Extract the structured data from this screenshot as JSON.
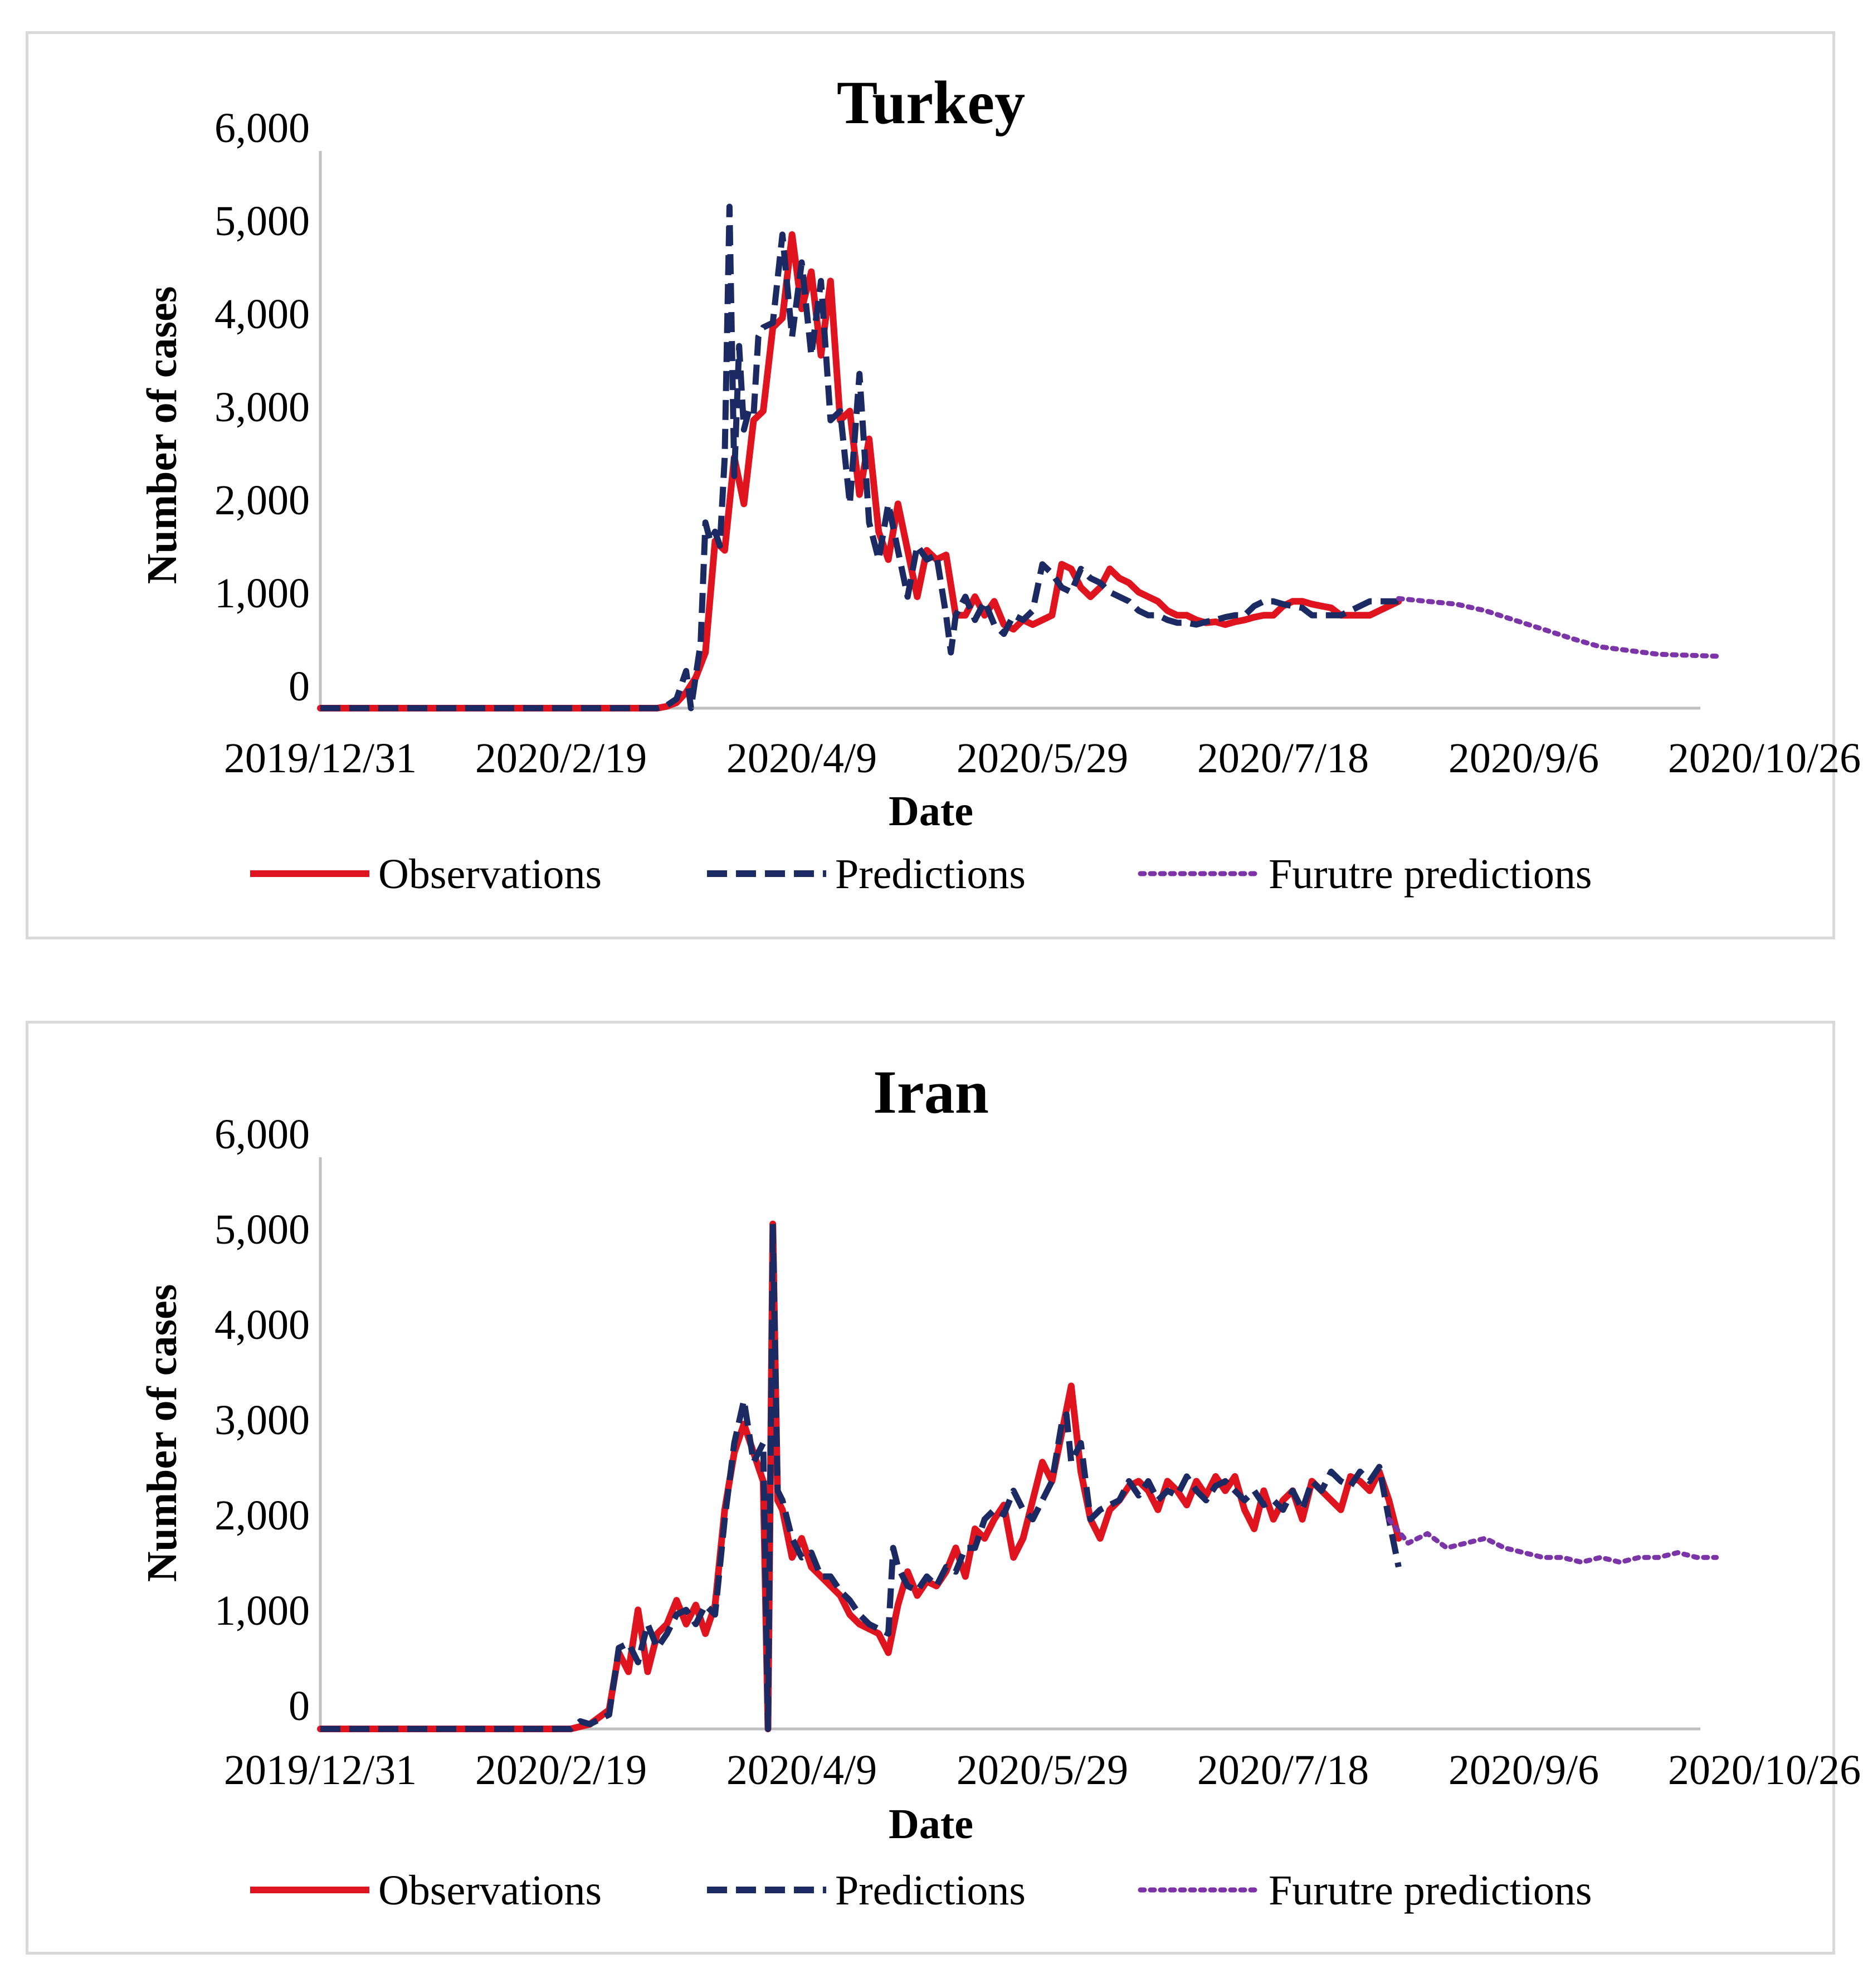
{
  "colors": {
    "observations": "#e0141e",
    "predictions": "#1b2a63",
    "future": "#7b35a8",
    "axis": "#bfbfbf"
  },
  "legend": {
    "observations": "Observations",
    "predictions": "Predictions",
    "future": "Furutre predictions"
  },
  "chart_data": [
    {
      "type": "line",
      "title": "Turkey",
      "xlabel": "Date",
      "ylabel": "Number of cases",
      "ylim": [
        0,
        6000
      ],
      "yticks": [
        "0",
        "1,000",
        "2,000",
        "3,000",
        "4,000",
        "5,000",
        "6,000"
      ],
      "x_tick_labels": [
        "2019/12/31",
        "2020/2/19",
        "2020/4/9",
        "2020/5/29",
        "2020/7/18",
        "2020/9/6",
        "2020/10/26"
      ],
      "x_unit": "days since 2019/12/31",
      "xlim": [
        0,
        300
      ],
      "series": [
        {
          "name": "Observations",
          "x": [
            0,
            70,
            72,
            74,
            76,
            78,
            80,
            82,
            84,
            86,
            88,
            90,
            92,
            94,
            96,
            98,
            100,
            102,
            104,
            106,
            108,
            110,
            112,
            114,
            116,
            118,
            120,
            122,
            124,
            126,
            128,
            130,
            132,
            134,
            136,
            138,
            140,
            142,
            144,
            146,
            148,
            150,
            152,
            154,
            156,
            158,
            160,
            162,
            164,
            166,
            168,
            170,
            172,
            174,
            176,
            178,
            180,
            182,
            184,
            186,
            188,
            190,
            192,
            194,
            196,
            198,
            200,
            202,
            204,
            206,
            208,
            210,
            212,
            214,
            216,
            218,
            220,
            222,
            224
          ],
          "y": [
            0,
            0,
            20,
            60,
            170,
            330,
            600,
            1800,
            1700,
            2700,
            2200,
            3100,
            3200,
            4100,
            4200,
            5100,
            4300,
            4700,
            3800,
            4600,
            3100,
            3200,
            2300,
            2900,
            1900,
            1600,
            2200,
            1700,
            1200,
            1700,
            1600,
            1650,
            1000,
            1000,
            1200,
            1000,
            1150,
            900,
            850,
            950,
            900,
            950,
            1000,
            1550,
            1500,
            1300,
            1200,
            1300,
            1500,
            1400,
            1350,
            1250,
            1200,
            1150,
            1050,
            1000,
            1000,
            950,
            920,
            930,
            900,
            930,
            950,
            980,
            1000,
            1000,
            1100,
            1150,
            1150,
            1120,
            1100,
            1080,
            1000,
            1000,
            1000,
            1000,
            1050,
            1100,
            1150
          ],
          "style": "solid"
        },
        {
          "name": "Predictions",
          "x": [
            0,
            70,
            72,
            74,
            76,
            77,
            78,
            79,
            80,
            81,
            82,
            83,
            84,
            85,
            86,
            87,
            88,
            89,
            90,
            91,
            92,
            94,
            96,
            98,
            100,
            102,
            104,
            106,
            108,
            110,
            112,
            114,
            116,
            118,
            120,
            122,
            124,
            126,
            128,
            130,
            131,
            132,
            134,
            136,
            138,
            140,
            142,
            144,
            146,
            148,
            150,
            152,
            154,
            156,
            158,
            160,
            162,
            164,
            166,
            168,
            170,
            172,
            174,
            176,
            178,
            180,
            182,
            184,
            186,
            188,
            190,
            192,
            194,
            196,
            198,
            200,
            202,
            204,
            206,
            208,
            210,
            212,
            214,
            216,
            218,
            220,
            222,
            224
          ],
          "y": [
            0,
            0,
            30,
            100,
            400,
            0,
            350,
            700,
            2000,
            1800,
            1900,
            1750,
            2700,
            5400,
            2500,
            3900,
            3000,
            3200,
            3150,
            4000,
            4100,
            4150,
            5100,
            4000,
            4800,
            3800,
            4600,
            3100,
            3200,
            2200,
            3600,
            2000,
            1600,
            2200,
            1700,
            1200,
            1750,
            1600,
            1650,
            1000,
            600,
            1000,
            1200,
            950,
            1150,
            900,
            800,
            1000,
            950,
            1050,
            1550,
            1450,
            1300,
            1250,
            1500,
            1400,
            1350,
            1250,
            1200,
            1150,
            1050,
            1000,
            1000,
            950,
            920,
            920,
            900,
            930,
            950,
            980,
            1000,
            1000,
            1100,
            1150,
            1150,
            1120,
            1100,
            1080,
            1000,
            1000,
            1000,
            1000,
            1050,
            1100,
            1150,
            1150,
            1150,
            1150
          ],
          "style": "dashed"
        },
        {
          "name": "Furutre predictions",
          "x": [
            224,
            230,
            236,
            242,
            248,
            254,
            260,
            266,
            272,
            278,
            284,
            290
          ],
          "y": [
            1180,
            1150,
            1120,
            1050,
            950,
            850,
            750,
            660,
            620,
            580,
            570,
            560
          ],
          "style": "dotted"
        }
      ]
    },
    {
      "type": "line",
      "title": "Iran",
      "xlabel": "Date",
      "ylabel": "Number of cases",
      "ylim": [
        0,
        6000
      ],
      "yticks": [
        "0",
        "1,000",
        "2,000",
        "3,000",
        "4,000",
        "5,000",
        "6,000"
      ],
      "x_tick_labels": [
        "2019/12/31",
        "2020/2/19",
        "2020/4/9",
        "2020/5/29",
        "2020/7/18",
        "2020/9/6",
        "2020/10/26"
      ],
      "x_unit": "days since 2019/12/31",
      "xlim": [
        0,
        300
      ],
      "series": [
        {
          "name": "Observations",
          "x": [
            0,
            52,
            56,
            60,
            62,
            64,
            66,
            68,
            70,
            72,
            74,
            76,
            78,
            80,
            82,
            84,
            86,
            88,
            90,
            92,
            93,
            94,
            95,
            96,
            98,
            100,
            102,
            104,
            106,
            108,
            110,
            112,
            114,
            116,
            118,
            120,
            122,
            124,
            126,
            128,
            130,
            132,
            134,
            136,
            138,
            140,
            142,
            144,
            146,
            148,
            150,
            152,
            154,
            156,
            158,
            160,
            162,
            164,
            166,
            168,
            170,
            172,
            174,
            176,
            178,
            180,
            182,
            184,
            186,
            188,
            190,
            192,
            194,
            196,
            198,
            200,
            202,
            204,
            206,
            208,
            210,
            212,
            214,
            216,
            218,
            220,
            222,
            224
          ],
          "y": [
            0,
            0,
            50,
            200,
            800,
            600,
            1250,
            600,
            1000,
            1100,
            1350,
            1100,
            1300,
            1000,
            1300,
            2300,
            2900,
            3200,
            2900,
            2600,
            0,
            5300,
            2400,
            2300,
            1800,
            2000,
            1700,
            1600,
            1500,
            1400,
            1200,
            1100,
            1050,
            1000,
            800,
            1300,
            1650,
            1400,
            1550,
            1500,
            1650,
            1900,
            1600,
            2100,
            2000,
            2200,
            2350,
            1800,
            2000,
            2400,
            2800,
            2600,
            3100,
            3600,
            2700,
            2200,
            2000,
            2300,
            2400,
            2550,
            2600,
            2500,
            2300,
            2600,
            2500,
            2350,
            2600,
            2450,
            2650,
            2500,
            2650,
            2300,
            2100,
            2500,
            2200,
            2400,
            2500,
            2200,
            2600,
            2500,
            2400,
            2300,
            2650,
            2600,
            2500,
            2700,
            2400,
            2000
          ],
          "style": "solid"
        },
        {
          "name": "Predictions",
          "x": [
            0,
            52,
            54,
            56,
            58,
            60,
            62,
            64,
            66,
            68,
            70,
            72,
            74,
            76,
            78,
            80,
            82,
            84,
            86,
            88,
            90,
            92,
            93,
            94,
            95,
            96,
            98,
            100,
            102,
            104,
            106,
            108,
            110,
            112,
            114,
            116,
            118,
            119,
            120,
            122,
            124,
            126,
            128,
            130,
            132,
            134,
            136,
            138,
            140,
            142,
            144,
            146,
            148,
            150,
            152,
            154,
            155,
            156,
            158,
            160,
            162,
            164,
            166,
            168,
            170,
            172,
            174,
            176,
            178,
            180,
            182,
            184,
            186,
            188,
            190,
            192,
            194,
            196,
            198,
            200,
            202,
            204,
            206,
            208,
            210,
            212,
            214,
            216,
            218,
            220,
            222,
            224
          ],
          "y": [
            0,
            0,
            80,
            50,
            100,
            150,
            850,
            900,
            700,
            1100,
            850,
            1000,
            1200,
            1250,
            1100,
            1300,
            1200,
            2200,
            3000,
            3450,
            2800,
            3000,
            0,
            5300,
            2500,
            2400,
            2000,
            1800,
            1850,
            1600,
            1600,
            1450,
            1350,
            1200,
            1100,
            1050,
            1000,
            1900,
            1700,
            1500,
            1450,
            1600,
            1500,
            1700,
            1650,
            1900,
            1900,
            2200,
            2300,
            2250,
            2500,
            2300,
            2200,
            2400,
            2600,
            3200,
            3300,
            2800,
            3000,
            2200,
            2300,
            2350,
            2400,
            2600,
            2450,
            2600,
            2400,
            2500,
            2450,
            2650,
            2500,
            2400,
            2550,
            2600,
            2500,
            2400,
            2500,
            2350,
            2400,
            2300,
            2500,
            2300,
            2600,
            2500,
            2700,
            2600,
            2550,
            2700,
            2600,
            2750,
            2200,
            1700
          ],
          "style": "dashed"
        },
        {
          "name": "Furutre predictions",
          "x": [
            222,
            226,
            230,
            234,
            238,
            242,
            246,
            250,
            254,
            258,
            262,
            266,
            270,
            274,
            278,
            282,
            286,
            290
          ],
          "y": [
            2200,
            1950,
            2050,
            1900,
            1950,
            2000,
            1900,
            1850,
            1800,
            1800,
            1750,
            1800,
            1750,
            1800,
            1800,
            1850,
            1800,
            1800
          ],
          "style": "dotted"
        }
      ]
    }
  ]
}
